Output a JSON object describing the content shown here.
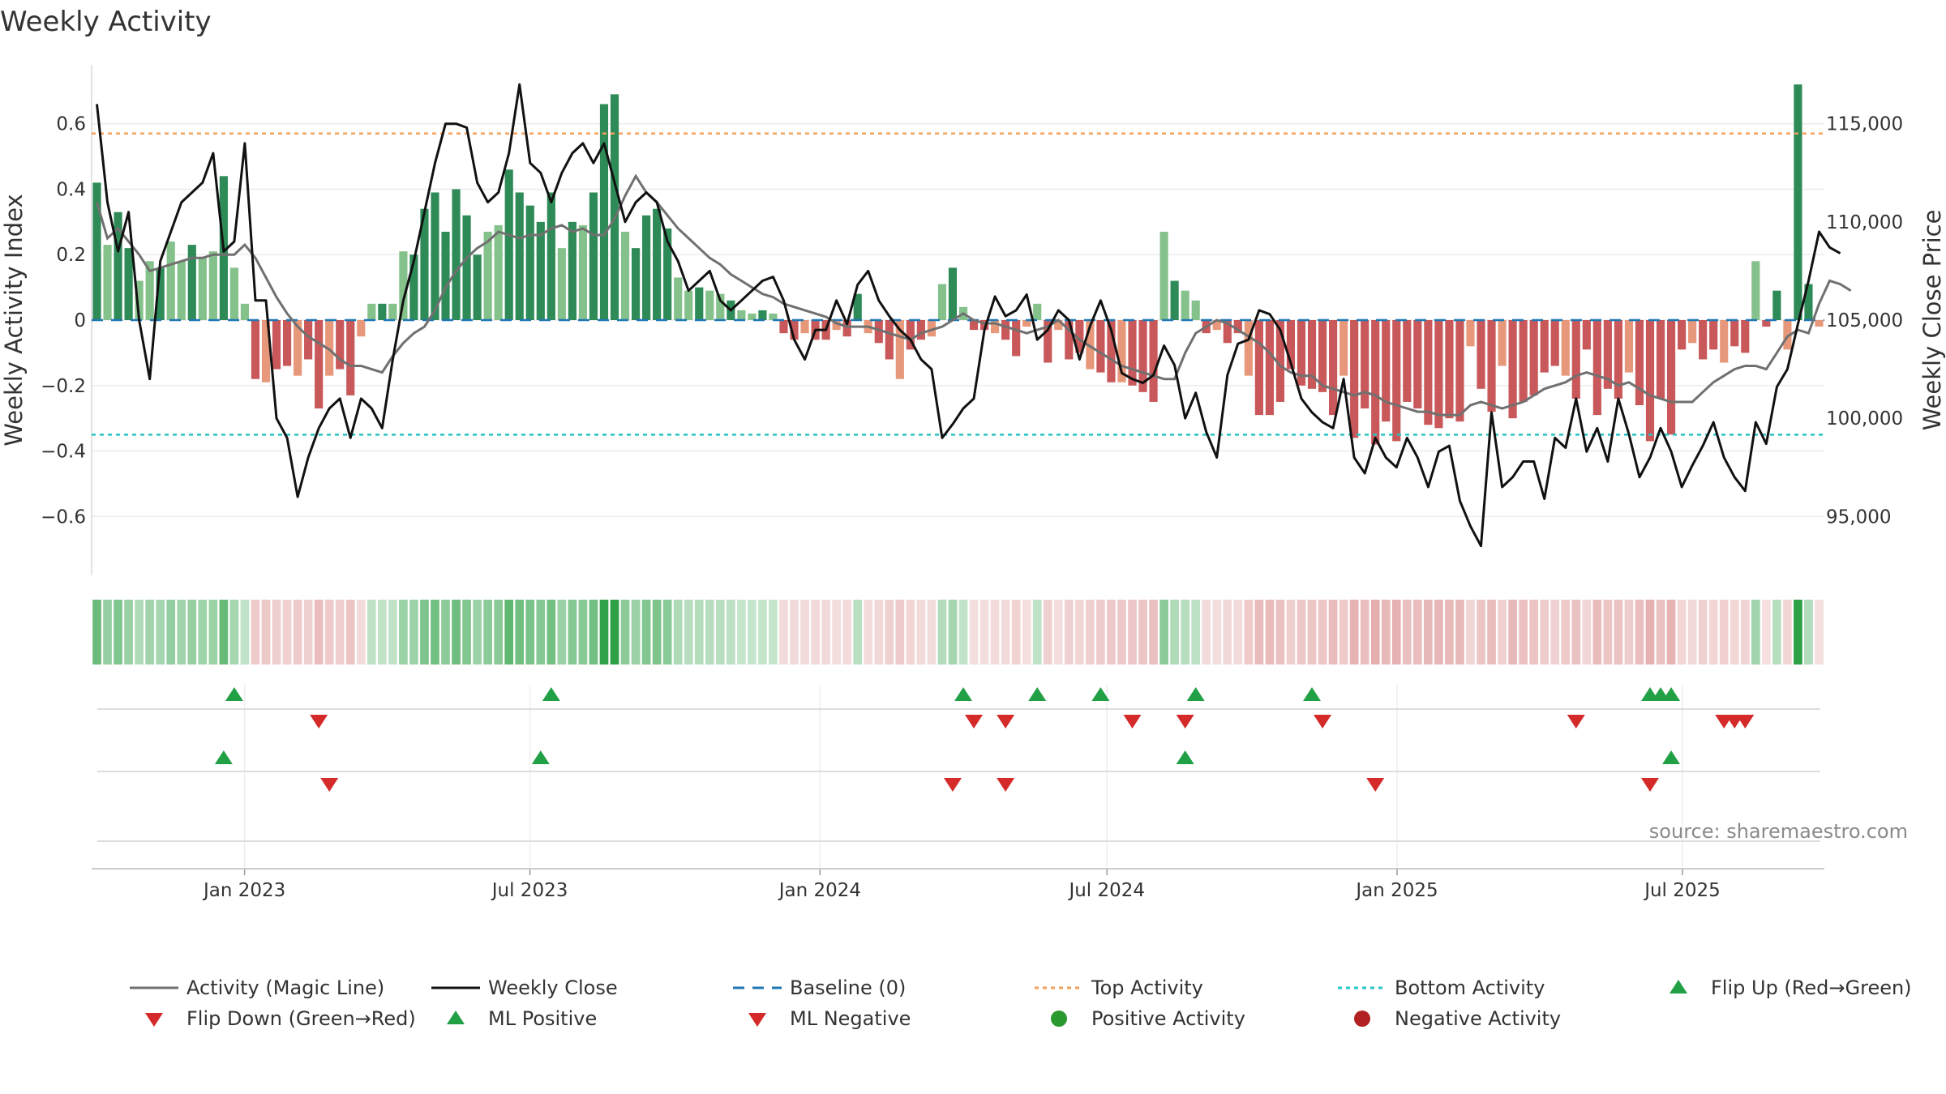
{
  "title": "Weekly Activity",
  "source": "source: sharemaestro.com",
  "colors": {
    "pos_dark": "#2e8b57",
    "pos_light": "#85c18b",
    "neg_dark": "#c9585a",
    "neg_light": "#e8987a",
    "magic": "#707070",
    "close": "#111111",
    "baseline": "#1f77b4",
    "top": "#f5a05a",
    "bottom": "#27c4c4",
    "up": "#22a046",
    "down": "#d42a2a",
    "pos_dot": "#2a9a30",
    "neg_dot": "#b22222"
  },
  "chart_data": {
    "type": "bar",
    "title": "Weekly Activity",
    "ylabel": "Weekly Activity Index",
    "y2label": "Weekly Close Price",
    "ylim": [
      -0.78,
      0.78
    ],
    "y2lim": [
      92000,
      118000
    ],
    "yticks": [
      -0.6,
      -0.4,
      -0.2,
      0,
      0.2,
      0.4,
      0.6
    ],
    "ytick_labels": [
      "−0.6",
      "−0.4",
      "−0.2",
      "0",
      "0.2",
      "0.4",
      "0.6"
    ],
    "y2ticks": [
      95000,
      100000,
      105000,
      110000,
      115000
    ],
    "y2tick_labels": [
      "95,000",
      "100,000",
      "105,000",
      "110,000",
      "115,000"
    ],
    "x_start": "2022-09-26",
    "x_end": "2025-09-29",
    "xticks": [
      "2023-01-01",
      "2023-07-01",
      "2024-01-01",
      "2024-07-01",
      "2025-01-01",
      "2025-07-01"
    ],
    "xtick_labels": [
      "Jan 2023",
      "Jul 2023",
      "Jan 2024",
      "Jul 2024",
      "Jan 2025",
      "Jul 2025"
    ],
    "top_activity": 0.57,
    "bottom_activity": -0.35,
    "baseline": 0,
    "series": [
      {
        "name": "Weekly Activity",
        "kind": "bar",
        "values": [
          0.42,
          0.23,
          0.33,
          0.22,
          0.12,
          0.18,
          0.16,
          0.24,
          0.18,
          0.23,
          0.19,
          0.21,
          0.44,
          0.16,
          0.05,
          -0.18,
          -0.19,
          -0.15,
          -0.14,
          -0.17,
          -0.12,
          -0.27,
          -0.17,
          -0.15,
          -0.23,
          -0.05,
          0.05,
          0.05,
          0.05,
          0.21,
          0.2,
          0.34,
          0.39,
          0.27,
          0.4,
          0.32,
          0.2,
          0.27,
          0.29,
          0.46,
          0.39,
          0.35,
          0.3,
          0.39,
          0.22,
          0.3,
          0.29,
          0.39,
          0.66,
          0.69,
          0.27,
          0.22,
          0.32,
          0.34,
          0.28,
          0.13,
          0.09,
          0.1,
          0.09,
          0.08,
          0.06,
          0.03,
          0.02,
          0.03,
          0.02,
          -0.04,
          -0.06,
          -0.04,
          -0.06,
          -0.06,
          -0.03,
          -0.05,
          0.08,
          -0.04,
          -0.07,
          -0.12,
          -0.18,
          -0.09,
          -0.06,
          -0.05,
          0.11,
          0.16,
          0.04,
          -0.03,
          -0.03,
          -0.04,
          -0.06,
          -0.11,
          -0.02,
          0.05,
          -0.13,
          -0.03,
          -0.12,
          -0.1,
          -0.15,
          -0.16,
          -0.19,
          -0.19,
          -0.2,
          -0.22,
          -0.25,
          0.27,
          0.12,
          0.09,
          0.06,
          -0.04,
          -0.03,
          -0.07,
          -0.04,
          -0.17,
          -0.29,
          -0.29,
          -0.25,
          -0.15,
          -0.2,
          -0.21,
          -0.22,
          -0.29,
          -0.17,
          -0.36,
          -0.27,
          -0.38,
          -0.31,
          -0.37,
          -0.25,
          -0.27,
          -0.32,
          -0.33,
          -0.3,
          -0.31,
          -0.08,
          -0.21,
          -0.28,
          -0.14,
          -0.3,
          -0.25,
          -0.23,
          -0.16,
          -0.14,
          -0.17,
          -0.24,
          -0.09,
          -0.29,
          -0.21,
          -0.24,
          -0.16,
          -0.26,
          -0.37,
          -0.24,
          -0.35,
          -0.09,
          -0.07,
          -0.12,
          -0.09,
          -0.13,
          -0.08,
          -0.1,
          0.18,
          -0.02,
          0.09,
          -0.09,
          0.72,
          0.11,
          -0.02
        ]
      },
      {
        "name": "Activity (Magic Line)",
        "kind": "line",
        "values": [
          0.36,
          0.25,
          0.28,
          0.24,
          0.2,
          0.15,
          0.16,
          0.17,
          0.18,
          0.19,
          0.19,
          0.2,
          0.2,
          0.2,
          0.23,
          0.19,
          0.13,
          0.07,
          0.02,
          -0.02,
          -0.05,
          -0.07,
          -0.09,
          -0.12,
          -0.14,
          -0.14,
          -0.15,
          -0.16,
          -0.11,
          -0.07,
          -0.04,
          -0.02,
          0.03,
          0.1,
          0.15,
          0.19,
          0.22,
          0.24,
          0.27,
          0.26,
          0.25,
          0.26,
          0.26,
          0.28,
          0.29,
          0.27,
          0.28,
          0.26,
          0.26,
          0.31,
          0.38,
          0.44,
          0.39,
          0.36,
          0.32,
          0.28,
          0.25,
          0.22,
          0.19,
          0.17,
          0.14,
          0.12,
          0.1,
          0.08,
          0.07,
          0.05,
          0.04,
          0.03,
          0.02,
          0.01,
          -0.01,
          -0.02,
          -0.02,
          -0.02,
          -0.03,
          -0.04,
          -0.05,
          -0.06,
          -0.04,
          -0.03,
          -0.02,
          0.0,
          0.02,
          0.0,
          -0.01,
          -0.01,
          -0.02,
          -0.03,
          -0.04,
          -0.03,
          -0.02,
          0.0,
          -0.03,
          -0.06,
          -0.08,
          -0.1,
          -0.12,
          -0.14,
          -0.15,
          -0.16,
          -0.17,
          -0.18,
          -0.18,
          -0.1,
          -0.04,
          -0.02,
          0.0,
          -0.01,
          -0.03,
          -0.05,
          -0.07,
          -0.1,
          -0.14,
          -0.16,
          -0.17,
          -0.17,
          -0.2,
          -0.21,
          -0.22,
          -0.23,
          -0.22,
          -0.23,
          -0.25,
          -0.26,
          -0.27,
          -0.28,
          -0.28,
          -0.29,
          -0.29,
          -0.29,
          -0.26,
          -0.25,
          -0.26,
          -0.27,
          -0.26,
          -0.25,
          -0.23,
          -0.21,
          -0.2,
          -0.19,
          -0.17,
          -0.16,
          -0.17,
          -0.18,
          -0.2,
          -0.19,
          -0.21,
          -0.23,
          -0.24,
          -0.25,
          -0.25,
          -0.25,
          -0.22,
          -0.19,
          -0.17,
          -0.15,
          -0.14,
          -0.14,
          -0.15,
          -0.1,
          -0.05,
          -0.03,
          -0.04,
          0.05,
          0.12,
          0.11,
          0.09
        ]
      },
      {
        "name": "Weekly Close",
        "kind": "line",
        "axis": "y2",
        "values": [
          116000,
          111000,
          108500,
          110500,
          105000,
          102000,
          108000,
          109500,
          111000,
          111500,
          112000,
          113500,
          108500,
          109000,
          114000,
          106000,
          106000,
          100000,
          99000,
          96000,
          98000,
          99500,
          100500,
          101000,
          99000,
          101000,
          100500,
          99500,
          103000,
          106000,
          108000,
          110500,
          113000,
          115000,
          115000,
          114800,
          112000,
          111000,
          111500,
          113500,
          117000,
          113000,
          112500,
          111000,
          112500,
          113500,
          114000,
          113000,
          114000,
          112000,
          110000,
          111000,
          111500,
          111000,
          109000,
          108000,
          106500,
          107000,
          107500,
          106000,
          105500,
          106000,
          106500,
          107000,
          107200,
          106000,
          104000,
          103000,
          104500,
          104500,
          106000,
          104800,
          106800,
          107500,
          106000,
          105200,
          104500,
          104000,
          103000,
          102500,
          99000,
          99700,
          100500,
          101000,
          104500,
          106200,
          105200,
          105500,
          106300,
          104000,
          104500,
          105500,
          105000,
          103000,
          104700,
          106000,
          104500,
          102300,
          102000,
          101800,
          102200,
          103700,
          102700,
          100000,
          101300,
          99300,
          98000,
          102200,
          103800,
          104000,
          105500,
          105300,
          104500,
          102800,
          101000,
          100300,
          99800,
          99500,
          102000,
          98000,
          97200,
          99000,
          98000,
          97500,
          99000,
          98000,
          96500,
          98300,
          98600,
          95800,
          94500,
          93500,
          100300,
          96500,
          97000,
          97800,
          97800,
          95900,
          99000,
          98500,
          101000,
          98300,
          99500,
          97800,
          101000,
          99200,
          97000,
          98000,
          99500,
          98300,
          96500,
          97600,
          98600,
          99800,
          98000,
          97000,
          96300,
          99800,
          98700,
          101600,
          102500,
          104800,
          107000,
          109500,
          108700,
          108400
        ]
      }
    ],
    "strip": {
      "name": "Weekly Activity heat strip",
      "value_source": "Weekly Activity"
    },
    "markers_row1": {
      "flip_up_weeks": [
        13,
        43,
        82,
        89,
        95,
        104,
        115,
        147,
        148,
        149
      ],
      "flip_down_weeks": [
        21,
        83,
        86,
        98,
        103,
        116,
        140,
        154,
        155,
        156
      ]
    },
    "markers_row2": {
      "ml_positive_weeks": [
        12,
        42,
        103,
        149
      ],
      "ml_negative_weeks": [
        22,
        81,
        86,
        121,
        147
      ]
    }
  },
  "legend": [
    {
      "label": "Activity (Magic Line)",
      "icon": "gray-line-icon"
    },
    {
      "label": "Weekly Close",
      "icon": "black-line-icon"
    },
    {
      "label": "Baseline (0)",
      "icon": "blue-dashed-line-icon"
    },
    {
      "label": "Top Activity",
      "icon": "orange-dotted-line-icon"
    },
    {
      "label": "Bottom Activity",
      "icon": "teal-dotted-line-icon"
    },
    {
      "label": "Flip Up (Red→Green)",
      "icon": "green-up-triangle-icon"
    },
    {
      "label": "Flip Down (Green→Red)",
      "icon": "red-down-triangle-icon"
    },
    {
      "label": "ML Positive",
      "icon": "green-up-triangle-icon"
    },
    {
      "label": "ML Negative",
      "icon": "red-down-triangle-icon"
    },
    {
      "label": "Positive Activity",
      "icon": "green-dot-icon"
    },
    {
      "label": "Negative Activity",
      "icon": "red-dot-icon"
    }
  ]
}
